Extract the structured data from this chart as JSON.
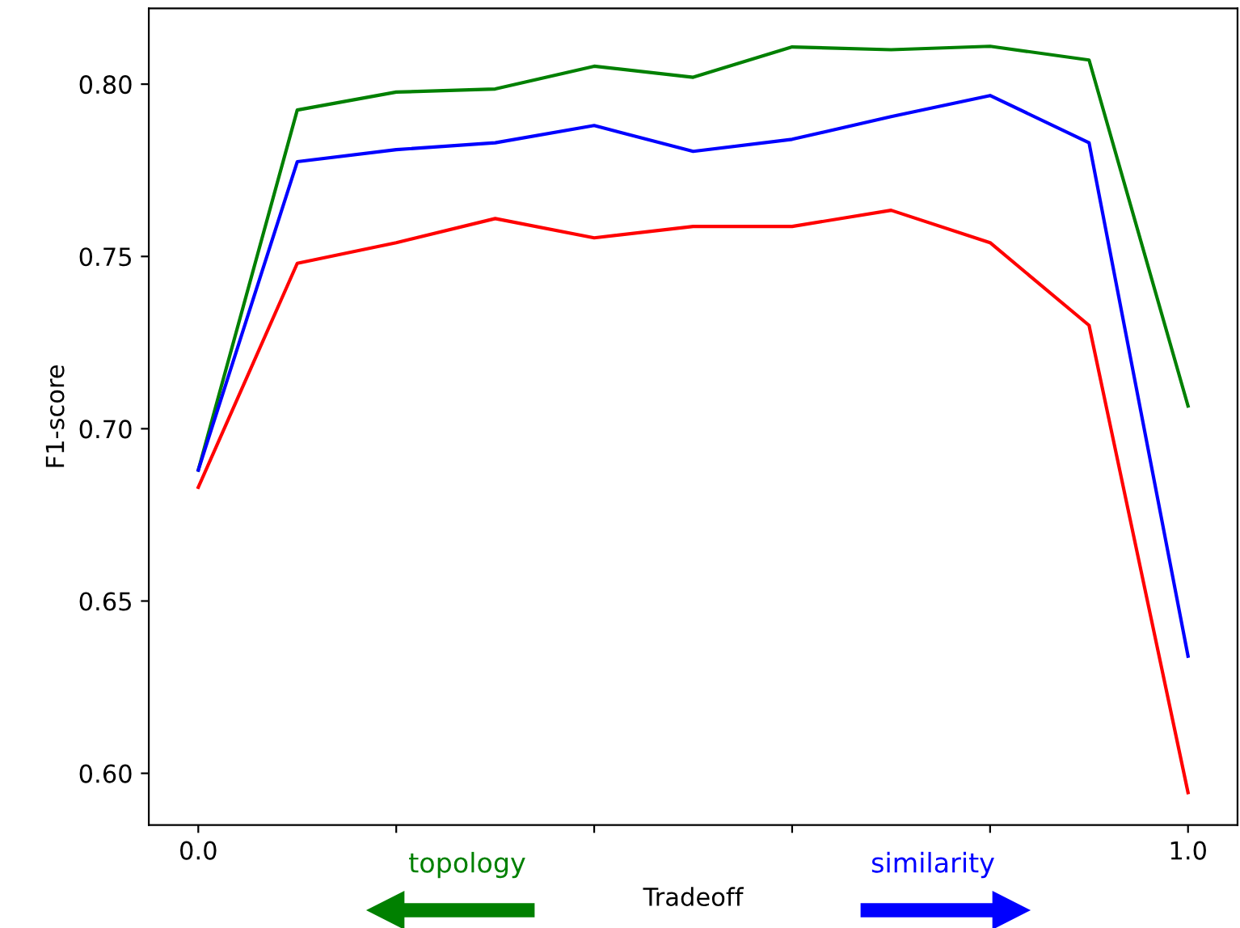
{
  "chart_data": {
    "type": "line",
    "xlabel": "Tradeoff",
    "ylabel": "F1-score",
    "x": [
      0.0,
      0.1,
      0.2,
      0.3,
      0.4,
      0.5,
      0.6,
      0.7,
      0.8,
      0.9,
      1.0
    ],
    "series": [
      {
        "color": "#008000",
        "values": [
          0.688,
          0.7925,
          0.7977,
          0.7986,
          0.8052,
          0.802,
          0.8108,
          0.81,
          0.811,
          0.807,
          0.7066
        ]
      },
      {
        "color": "#0000ff",
        "values": [
          0.688,
          0.7775,
          0.781,
          0.783,
          0.788,
          0.7805,
          0.784,
          0.7906,
          0.7967,
          0.783,
          0.634
        ]
      },
      {
        "color": "#ff0000",
        "values": [
          0.683,
          0.748,
          0.754,
          0.761,
          0.7554,
          0.7587,
          0.7587,
          0.7634,
          0.754,
          0.73,
          0.5944
        ]
      }
    ],
    "xlim": [
      -0.05,
      1.05
    ],
    "xticks": [
      {
        "value": 0.0,
        "label": "0.0"
      },
      {
        "value": 0.2,
        "label": null
      },
      {
        "value": 0.4,
        "label": null
      },
      {
        "value": 0.6,
        "label": null
      },
      {
        "value": 0.8,
        "label": null
      },
      {
        "value": 1.0,
        "label": "1.0"
      }
    ],
    "ylim": [
      0.585,
      0.822
    ],
    "yticks": [
      {
        "value": 0.6,
        "label": "0.60"
      },
      0.65,
      {
        "value": 0.7,
        "label": "0.70"
      },
      0.75,
      {
        "value": 0.8,
        "label": "0.80"
      }
    ],
    "annotations": [
      "topology",
      "similarity"
    ],
    "grid": false,
    "legend": false,
    "marker": "none",
    "line_style": "solid"
  }
}
